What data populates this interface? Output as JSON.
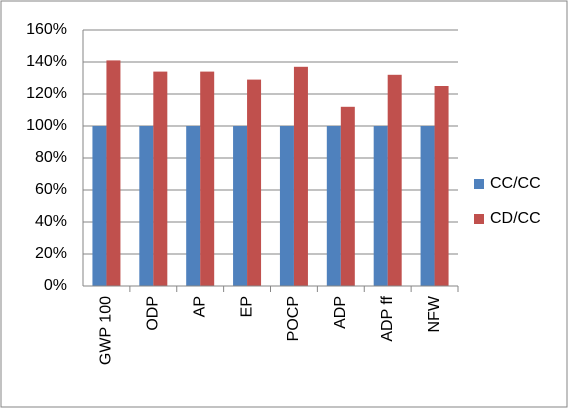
{
  "chart_data": {
    "type": "bar",
    "categories": [
      "GWP 100",
      "ODP",
      "AP",
      "EP",
      "POCP",
      "ADP",
      "ADP ff",
      "NFW"
    ],
    "series": [
      {
        "name": "CC/CC",
        "color": "#4f81bd",
        "values": [
          100,
          100,
          100,
          100,
          100,
          100,
          100,
          100
        ]
      },
      {
        "name": "CD/CC",
        "color": "#c0504d",
        "values": [
          141,
          134,
          134,
          129,
          137,
          112,
          132,
          125
        ]
      }
    ],
    "ylim": [
      0,
      160
    ],
    "yticks": [
      {
        "value": 0,
        "label": "0%"
      },
      {
        "value": 20,
        "label": "20%"
      },
      {
        "value": 40,
        "label": "40%"
      },
      {
        "value": 60,
        "label": "60%"
      },
      {
        "value": 80,
        "label": "80%"
      },
      {
        "value": 100,
        "label": "100%"
      },
      {
        "value": 120,
        "label": "120%"
      },
      {
        "value": 140,
        "label": "140%"
      },
      {
        "value": 160,
        "label": "160%"
      }
    ],
    "grid": true,
    "legend": "right"
  }
}
